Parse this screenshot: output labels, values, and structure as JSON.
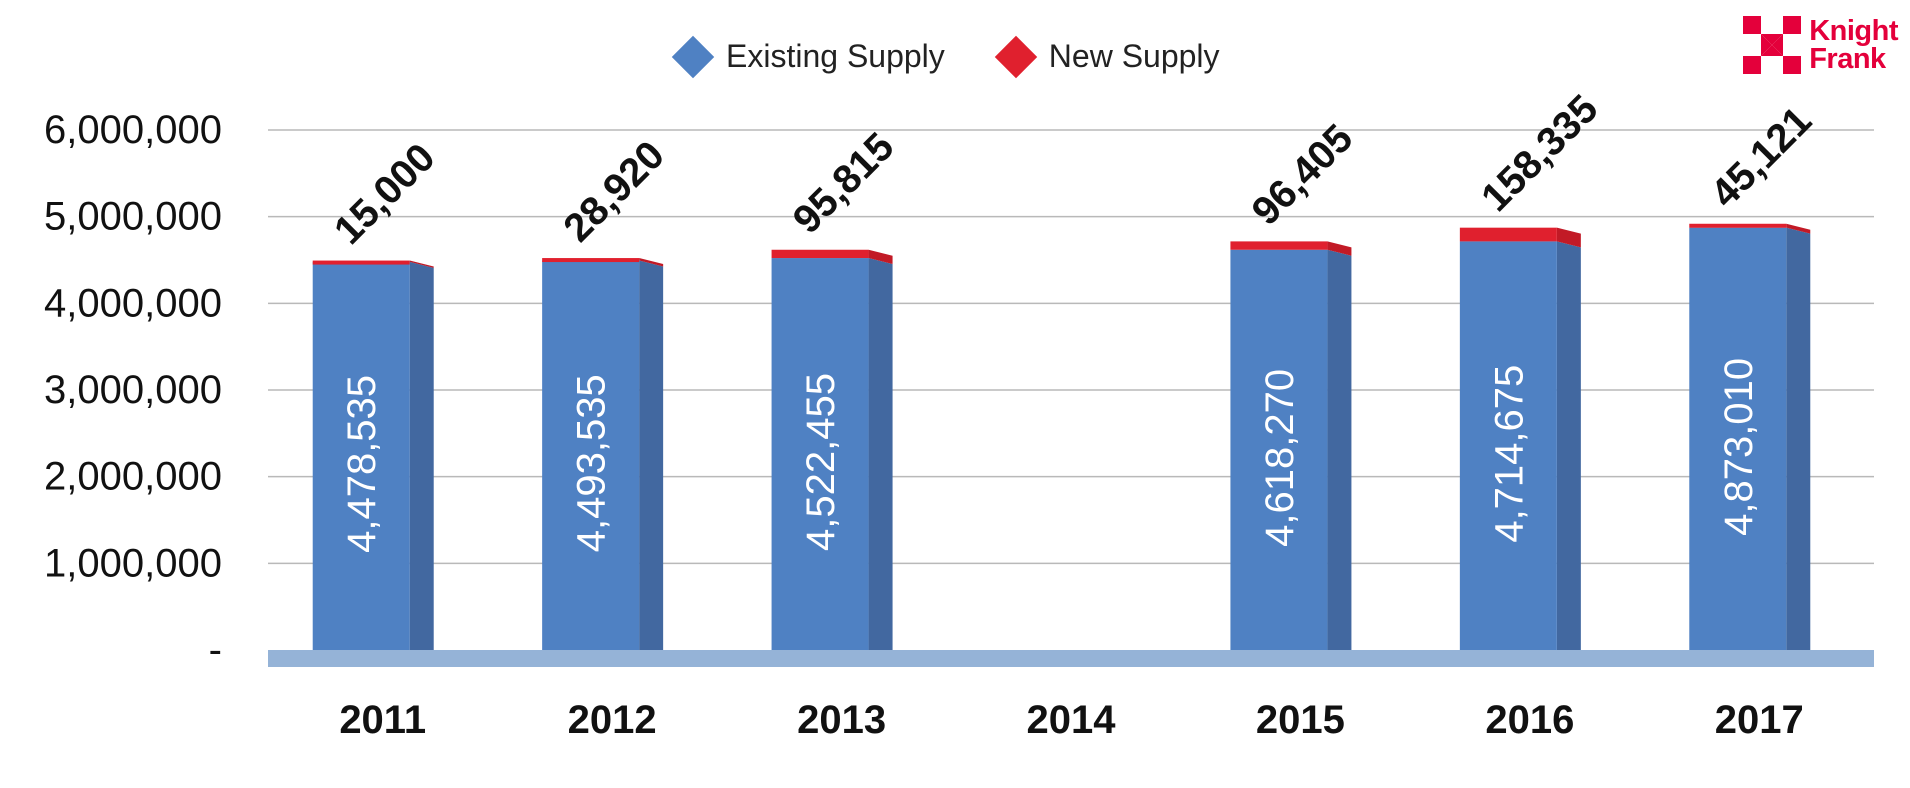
{
  "chart_data": {
    "type": "bar",
    "stacked": true,
    "categories": [
      "2011",
      "2012",
      "2013",
      "2014",
      "2015",
      "2016",
      "2017"
    ],
    "series": [
      {
        "name": "Existing Supply",
        "color": "#4f81c3",
        "values": [
          4478535,
          4493535,
          4522455,
          null,
          4618270,
          4714675,
          4873010
        ],
        "labels": [
          "4,478,535",
          "4,493,535",
          "4,522,455",
          "",
          "4,618,270",
          "4,714,675",
          "4,873,010"
        ]
      },
      {
        "name": "New Supply",
        "color": "#e0202e",
        "values": [
          15000,
          28920,
          95815,
          null,
          96405,
          158335,
          45121
        ],
        "labels": [
          "15,000",
          "28,920",
          "95,815",
          "",
          "96,405",
          "158,335",
          "45,121"
        ]
      }
    ],
    "yticks": [
      "-",
      "1,000,000",
      "2,000,000",
      "3,000,000",
      "4,000,000",
      "5,000,000",
      "6,000,000"
    ],
    "ylim": [
      0,
      6000000
    ],
    "grid": true,
    "legend_position": "top-center"
  },
  "brand": {
    "line1": "Knight",
    "line2": "Frank",
    "color": "#e4003b"
  }
}
